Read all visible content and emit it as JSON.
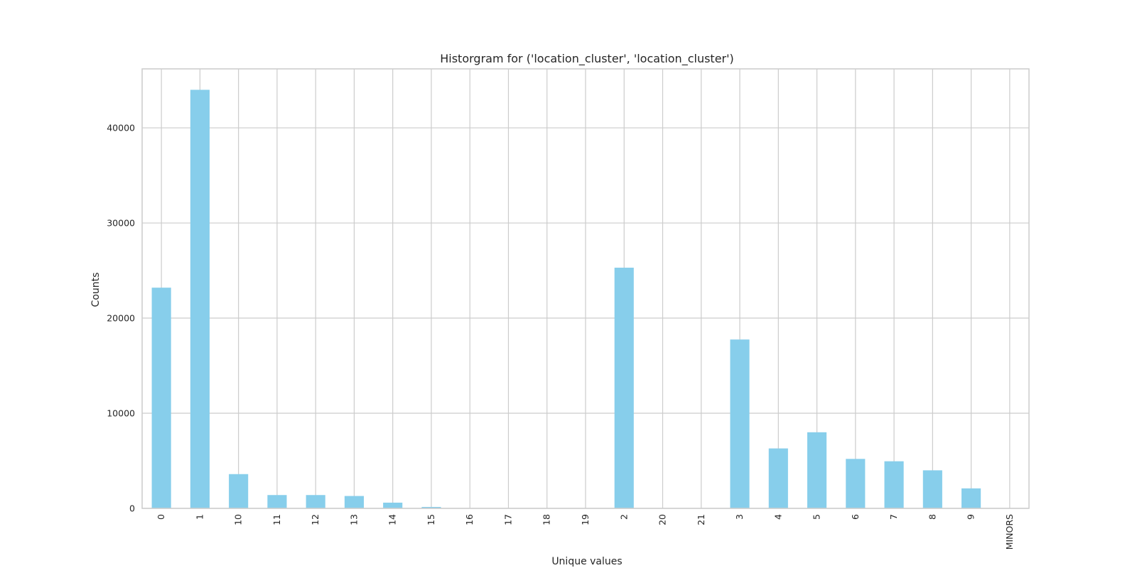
{
  "chart_data": {
    "type": "bar",
    "title": "Historgram for ('location_cluster', 'location_cluster')",
    "xlabel": "Unique values",
    "ylabel": "Counts",
    "categories": [
      "0",
      "1",
      "10",
      "11",
      "12",
      "13",
      "14",
      "15",
      "16",
      "17",
      "18",
      "19",
      "2",
      "20",
      "21",
      "3",
      "4",
      "5",
      "6",
      "7",
      "8",
      "9",
      "MINORS"
    ],
    "values": [
      23200,
      44000,
      3600,
      1400,
      1400,
      1300,
      600,
      150,
      30,
      20,
      20,
      20,
      25300,
      10,
      10,
      17750,
      6300,
      8000,
      5200,
      4950,
      4000,
      2100,
      10
    ],
    "ylim": [
      0,
      46200
    ],
    "yticks": [
      0,
      10000,
      20000,
      30000,
      40000
    ],
    "ytick_labels": [
      "0",
      "10000",
      "20000",
      "30000",
      "40000"
    ],
    "grid": true,
    "legend": "none",
    "bar_color": "#87ceeb"
  }
}
